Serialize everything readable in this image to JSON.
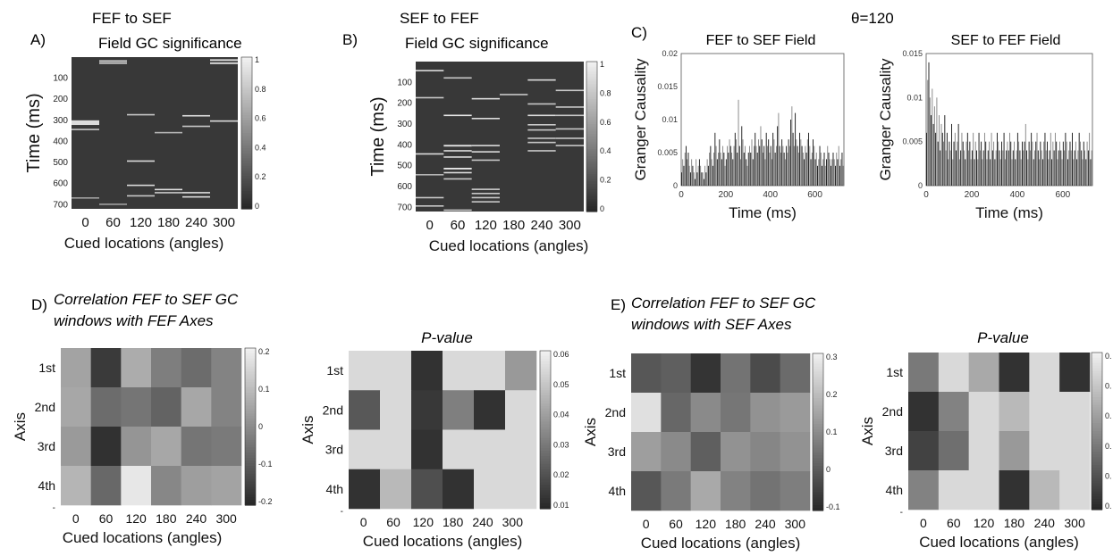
{
  "panels": {
    "a": {
      "letter": "A)",
      "title1": "FEF to SEF",
      "title2": "Field GC significance"
    },
    "b": {
      "letter": "B)",
      "title1": "SEF to FEF",
      "title2": "Field GC significance"
    },
    "c": {
      "letter": "C)",
      "theta": "θ=120",
      "left_title": "FEF to SEF Field",
      "right_title": "SEF to FEF Field"
    },
    "d": {
      "letter": "D)",
      "title1": "Correlation FEF to SEF GC",
      "title2": "windows with FEF Axes",
      "pvalue_title": "P-value"
    },
    "e": {
      "letter": "E)",
      "title1": "Correlation FEF to SEF GC",
      "title2": "windows with SEF Axes",
      "pvalue_title": "P-value"
    }
  },
  "chart_data": [
    {
      "id": "A",
      "type": "heatmap",
      "title": "FEF to SEF Field GC significance",
      "xlabel": "Cued locations (angles)",
      "ylabel": "Time (ms)",
      "x_ticks": [
        "0",
        "60",
        "120",
        "180",
        "240",
        "300"
      ],
      "y_ticks": [
        "100",
        "200",
        "300",
        "400",
        "500",
        "600",
        "700"
      ],
      "y_range": [
        0,
        720
      ],
      "colorbar_ticks": [
        "1",
        "0.8",
        "0.6",
        "0.4",
        "0.2",
        "0"
      ],
      "colorbar_range": [
        0,
        1
      ],
      "background_value": 0.08,
      "significant": [
        {
          "col": 0,
          "t": 300,
          "h": 22,
          "v": 0.9
        },
        {
          "col": 0,
          "t": 340,
          "h": 5,
          "v": 0.8
        },
        {
          "col": 0,
          "t": 665,
          "h": 4,
          "v": 0.6
        },
        {
          "col": 1,
          "t": 15,
          "h": 4,
          "v": 0.9
        },
        {
          "col": 1,
          "t": 25,
          "h": 4,
          "v": 0.9
        },
        {
          "col": 1,
          "t": 695,
          "h": 4,
          "v": 0.6
        },
        {
          "col": 2,
          "t": 270,
          "h": 4,
          "v": 0.8
        },
        {
          "col": 2,
          "t": 490,
          "h": 5,
          "v": 0.9
        },
        {
          "col": 2,
          "t": 605,
          "h": 4,
          "v": 0.9
        },
        {
          "col": 2,
          "t": 655,
          "h": 4,
          "v": 0.8
        },
        {
          "col": 3,
          "t": 355,
          "h": 4,
          "v": 0.7
        },
        {
          "col": 3,
          "t": 625,
          "h": 5,
          "v": 0.9
        },
        {
          "col": 3,
          "t": 640,
          "h": 4,
          "v": 0.8
        },
        {
          "col": 4,
          "t": 275,
          "h": 4,
          "v": 0.9
        },
        {
          "col": 4,
          "t": 325,
          "h": 4,
          "v": 0.8
        },
        {
          "col": 4,
          "t": 640,
          "h": 4,
          "v": 0.9
        },
        {
          "col": 4,
          "t": 660,
          "h": 4,
          "v": 0.9
        },
        {
          "col": 5,
          "t": 10,
          "h": 8,
          "v": 0.9
        },
        {
          "col": 5,
          "t": 25,
          "h": 8,
          "v": 0.9
        },
        {
          "col": 5,
          "t": 300,
          "h": 4,
          "v": 0.9
        }
      ]
    },
    {
      "id": "B",
      "type": "heatmap",
      "title": "SEF to FEF Field GC significance",
      "xlabel": "Cued locations (angles)",
      "ylabel": "Time (ms)",
      "x_ticks": [
        "0",
        "60",
        "120",
        "180",
        "240",
        "300"
      ],
      "y_ticks": [
        "100",
        "200",
        "300",
        "400",
        "500",
        "600",
        "700"
      ],
      "y_range": [
        0,
        720
      ],
      "colorbar_ticks": [
        "1",
        "0.8",
        "0.6",
        "0.4",
        "0.2",
        "0"
      ],
      "colorbar_range": [
        0,
        1
      ],
      "background_value": 0.08,
      "significant": [
        {
          "col": 0,
          "t": 40,
          "h": 4,
          "v": 0.9
        },
        {
          "col": 0,
          "t": 170,
          "h": 4,
          "v": 0.8
        },
        {
          "col": 0,
          "t": 440,
          "h": 5,
          "v": 0.9
        },
        {
          "col": 0,
          "t": 540,
          "h": 4,
          "v": 0.7
        },
        {
          "col": 0,
          "t": 650,
          "h": 4,
          "v": 0.8
        },
        {
          "col": 0,
          "t": 690,
          "h": 4,
          "v": 0.8
        },
        {
          "col": 1,
          "t": 75,
          "h": 4,
          "v": 0.8
        },
        {
          "col": 1,
          "t": 255,
          "h": 6,
          "v": 0.95
        },
        {
          "col": 1,
          "t": 400,
          "h": 8,
          "v": 0.95
        },
        {
          "col": 1,
          "t": 425,
          "h": 6,
          "v": 0.9
        },
        {
          "col": 1,
          "t": 455,
          "h": 5,
          "v": 0.9
        },
        {
          "col": 1,
          "t": 510,
          "h": 8,
          "v": 0.95
        },
        {
          "col": 1,
          "t": 530,
          "h": 6,
          "v": 0.9
        },
        {
          "col": 1,
          "t": 560,
          "h": 4,
          "v": 0.8
        },
        {
          "col": 1,
          "t": 710,
          "h": 4,
          "v": 0.8
        },
        {
          "col": 2,
          "t": 175,
          "h": 4,
          "v": 0.9
        },
        {
          "col": 2,
          "t": 270,
          "h": 4,
          "v": 0.9
        },
        {
          "col": 2,
          "t": 400,
          "h": 5,
          "v": 0.9
        },
        {
          "col": 2,
          "t": 430,
          "h": 5,
          "v": 0.9
        },
        {
          "col": 2,
          "t": 470,
          "h": 4,
          "v": 0.8
        },
        {
          "col": 2,
          "t": 610,
          "h": 4,
          "v": 0.8
        },
        {
          "col": 2,
          "t": 630,
          "h": 4,
          "v": 0.8
        },
        {
          "col": 2,
          "t": 650,
          "h": 4,
          "v": 0.8
        },
        {
          "col": 2,
          "t": 670,
          "h": 4,
          "v": 0.8
        },
        {
          "col": 3,
          "t": 155,
          "h": 4,
          "v": 0.8
        },
        {
          "col": 4,
          "t": 85,
          "h": 4,
          "v": 0.9
        },
        {
          "col": 4,
          "t": 200,
          "h": 4,
          "v": 0.8
        },
        {
          "col": 4,
          "t": 255,
          "h": 4,
          "v": 0.9
        },
        {
          "col": 4,
          "t": 300,
          "h": 4,
          "v": 0.8
        },
        {
          "col": 4,
          "t": 325,
          "h": 4,
          "v": 0.8
        },
        {
          "col": 4,
          "t": 365,
          "h": 4,
          "v": 0.8
        },
        {
          "col": 4,
          "t": 385,
          "h": 4,
          "v": 0.8
        },
        {
          "col": 4,
          "t": 425,
          "h": 4,
          "v": 0.8
        },
        {
          "col": 5,
          "t": 135,
          "h": 4,
          "v": 0.8
        },
        {
          "col": 5,
          "t": 215,
          "h": 4,
          "v": 0.8
        },
        {
          "col": 5,
          "t": 255,
          "h": 4,
          "v": 0.8
        },
        {
          "col": 5,
          "t": 320,
          "h": 4,
          "v": 0.8
        },
        {
          "col": 5,
          "t": 365,
          "h": 4,
          "v": 0.8
        },
        {
          "col": 5,
          "t": 400,
          "h": 4,
          "v": 0.8
        }
      ]
    },
    {
      "id": "C-left",
      "type": "bar",
      "title": "FEF to SEF Field",
      "xlabel": "Time (ms)",
      "ylabel": "Granger Causality",
      "x_range": [
        0,
        730
      ],
      "x_ticks": [
        0,
        200,
        400,
        600
      ],
      "y_range": [
        0,
        0.02
      ],
      "y_ticks": [
        0,
        0.005,
        0.01,
        0.015,
        0.02
      ],
      "bin_ms": 5,
      "values": [
        0.002,
        0.004,
        0.003,
        0.005,
        0.006,
        0.004,
        0.005,
        0.003,
        0.002,
        0.004,
        0.003,
        0.002,
        0.001,
        0.004,
        0.002,
        0.003,
        0.004,
        0.003,
        0.002,
        0.002,
        0.001,
        0.003,
        0.002,
        0.004,
        0.003,
        0.005,
        0.006,
        0.004,
        0.003,
        0.005,
        0.008,
        0.006,
        0.004,
        0.005,
        0.007,
        0.005,
        0.004,
        0.006,
        0.005,
        0.003,
        0.004,
        0.006,
        0.005,
        0.007,
        0.006,
        0.005,
        0.004,
        0.006,
        0.008,
        0.007,
        0.005,
        0.013,
        0.006,
        0.004,
        0.009,
        0.007,
        0.005,
        0.006,
        0.004,
        0.003,
        0.005,
        0.006,
        0.005,
        0.007,
        0.004,
        0.006,
        0.008,
        0.006,
        0.005,
        0.007,
        0.006,
        0.009,
        0.007,
        0.005,
        0.006,
        0.004,
        0.008,
        0.006,
        0.007,
        0.005,
        0.006,
        0.004,
        0.008,
        0.007,
        0.005,
        0.006,
        0.009,
        0.011,
        0.006,
        0.005,
        0.007,
        0.006,
        0.005,
        0.004,
        0.006,
        0.005,
        0.007,
        0.006,
        0.01,
        0.012,
        0.008,
        0.006,
        0.011,
        0.007,
        0.006,
        0.005,
        0.008,
        0.007,
        0.006,
        0.005,
        0.004,
        0.006,
        0.005,
        0.007,
        0.008,
        0.006,
        0.004,
        0.005,
        0.007,
        0.006,
        0.004,
        0.005,
        0.003,
        0.004,
        0.006,
        0.005,
        0.003,
        0.004,
        0.005,
        0.003,
        0.004,
        0.006,
        0.005,
        0.004,
        0.003,
        0.004,
        0.005,
        0.004,
        0.003,
        0.005,
        0.004,
        0.006,
        0.003,
        0.004,
        0.005,
        0.003
      ]
    },
    {
      "id": "C-right",
      "type": "bar",
      "title": "SEF to FEF Field",
      "xlabel": "Time (ms)",
      "ylabel": "Granger Causality",
      "x_range": [
        0,
        730
      ],
      "x_ticks": [
        0,
        200,
        400,
        600
      ],
      "y_range": [
        0,
        0.015
      ],
      "y_ticks": [
        0,
        0.005,
        0.01,
        0.015
      ],
      "bin_ms": 5,
      "values": [
        0.006,
        0.012,
        0.014,
        0.01,
        0.008,
        0.011,
        0.007,
        0.009,
        0.006,
        0.01,
        0.005,
        0.008,
        0.004,
        0.007,
        0.006,
        0.005,
        0.008,
        0.004,
        0.006,
        0.003,
        0.005,
        0.004,
        0.007,
        0.003,
        0.005,
        0.006,
        0.004,
        0.005,
        0.007,
        0.003,
        0.004,
        0.006,
        0.005,
        0.004,
        0.003,
        0.005,
        0.006,
        0.004,
        0.005,
        0.003,
        0.004,
        0.006,
        0.003,
        0.005,
        0.004,
        0.003,
        0.006,
        0.004,
        0.005,
        0.003,
        0.004,
        0.006,
        0.005,
        0.003,
        0.004,
        0.005,
        0.003,
        0.006,
        0.004,
        0.005,
        0.003,
        0.004,
        0.006,
        0.005,
        0.004,
        0.003,
        0.005,
        0.004,
        0.006,
        0.003,
        0.004,
        0.005,
        0.004,
        0.006,
        0.005,
        0.003,
        0.004,
        0.005,
        0.003,
        0.004,
        0.006,
        0.005,
        0.004,
        0.003,
        0.005,
        0.004,
        0.005,
        0.007,
        0.004,
        0.003,
        0.005,
        0.004,
        0.006,
        0.005,
        0.003,
        0.004,
        0.005,
        0.006,
        0.004,
        0.003,
        0.005,
        0.004,
        0.003,
        0.005,
        0.006,
        0.004,
        0.005,
        0.003,
        0.004,
        0.006,
        0.003,
        0.005,
        0.004,
        0.006,
        0.005,
        0.003,
        0.004,
        0.005,
        0.004,
        0.003,
        0.005,
        0.004,
        0.006,
        0.005,
        0.003,
        0.004,
        0.005,
        0.004,
        0.006,
        0.003,
        0.004,
        0.005,
        0.003,
        0.004,
        0.006,
        0.005,
        0.004,
        0.003,
        0.005,
        0.004,
        0.003,
        0.005,
        0.004,
        0.006,
        0.003,
        0.004
      ]
    },
    {
      "id": "D-corr",
      "type": "heatmap",
      "xlabel": "Cued locations (angles)",
      "ylabel": "Axis",
      "x_ticks": [
        "0",
        "60",
        "120",
        "180",
        "240",
        "300"
      ],
      "y_ticks": [
        "1st",
        "2nd",
        "3rd",
        "4th",
        "-"
      ],
      "colorbar_ticks": [
        "0.2",
        "0.1",
        "0",
        "-0.1",
        "-0.2"
      ],
      "colorbar_range": [
        -0.22,
        0.22
      ],
      "values": [
        [
          0.05,
          -0.18,
          0.07,
          -0.03,
          -0.07,
          -0.02
        ],
        [
          0.06,
          -0.07,
          -0.05,
          -0.09,
          0.06,
          -0.02
        ],
        [
          0.03,
          -0.2,
          0.02,
          0.06,
          -0.05,
          -0.04
        ],
        [
          0.09,
          -0.08,
          0.2,
          -0.01,
          0.04,
          0.05
        ]
      ]
    },
    {
      "id": "D-p",
      "type": "heatmap",
      "title": "P-value",
      "xlabel": "Cued locations (angles)",
      "ylabel": "Axis",
      "x_ticks": [
        "0",
        "60",
        "120",
        "180",
        "240",
        "300"
      ],
      "y_ticks": [
        "1st",
        "2nd",
        "3rd",
        "4th",
        "-"
      ],
      "colorbar_ticks": [
        "0.06",
        "0.05",
        "0.04",
        "0.03",
        "0.02",
        "0.01"
      ],
      "colorbar_range": [
        0,
        0.062
      ],
      "values": [
        [
          0.055,
          0.055,
          0.003,
          0.055,
          0.055,
          0.035
        ],
        [
          0.015,
          0.055,
          0.005,
          0.027,
          0.003,
          0.055
        ],
        [
          0.055,
          0.055,
          0.003,
          0.055,
          0.055,
          0.055
        ],
        [
          0.003,
          0.045,
          0.012,
          0.003,
          0.055,
          0.055
        ]
      ]
    },
    {
      "id": "E-corr",
      "type": "heatmap",
      "xlabel": "Cued locations (angles)",
      "ylabel": "Axis",
      "x_ticks": [
        "0",
        "60",
        "120",
        "180",
        "240",
        "300"
      ],
      "y_ticks": [
        "1st",
        "2nd",
        "3rd",
        "4th"
      ],
      "colorbar_ticks": [
        "0.3",
        "0.2",
        "0.1",
        "0",
        "-0.1"
      ],
      "colorbar_range": [
        -0.17,
        0.34
      ],
      "values": [
        [
          -0.05,
          -0.03,
          -0.14,
          0.02,
          -0.08,
          0.0
        ],
        [
          0.3,
          -0.01,
          0.08,
          0.03,
          0.1,
          0.12
        ],
        [
          0.13,
          0.08,
          -0.03,
          0.1,
          0.07,
          0.1
        ],
        [
          -0.05,
          0.04,
          0.16,
          0.06,
          0.02,
          0.05
        ]
      ]
    },
    {
      "id": "E-p",
      "type": "heatmap",
      "title": "P-value",
      "xlabel": "Cued locations (angles)",
      "ylabel": "Axis",
      "x_ticks": [
        "0",
        "60",
        "120",
        "180",
        "240",
        "300"
      ],
      "y_ticks": [
        "1st",
        "2nd",
        "3rd",
        "4th",
        "-"
      ],
      "colorbar_ticks": [
        "0.",
        "0.",
        "0.",
        "0.",
        "0.",
        "0."
      ],
      "colorbar_range": [
        0,
        0.062
      ],
      "values": [
        [
          0.025,
          0.055,
          0.04,
          0.003,
          0.055,
          0.003
        ],
        [
          0.003,
          0.028,
          0.055,
          0.045,
          0.055,
          0.055
        ],
        [
          0.008,
          0.022,
          0.055,
          0.035,
          0.055,
          0.055
        ],
        [
          0.028,
          0.055,
          0.055,
          0.003,
          0.045,
          0.055
        ]
      ]
    }
  ]
}
